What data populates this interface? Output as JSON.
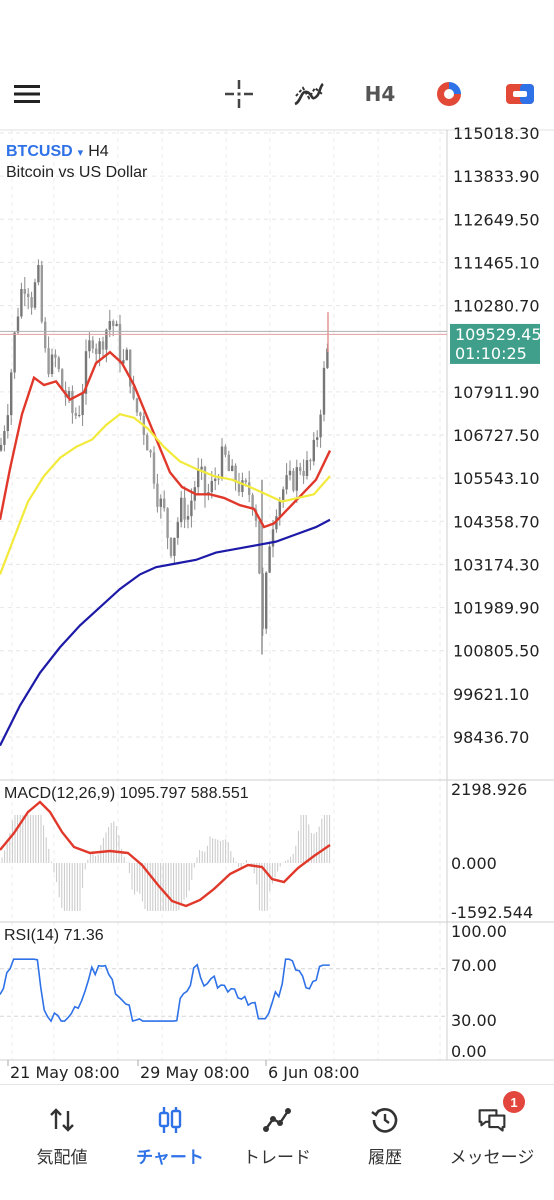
{
  "toolbar": {
    "timeframe": "H4",
    "icons": [
      "menu-icon",
      "crosshair-icon",
      "indicators-icon",
      "timeframe",
      "objects-icon",
      "trade-icon"
    ]
  },
  "symbol": {
    "name": "BTCUSD",
    "caret": "▾",
    "timeframe": "H4",
    "description": "Bitcoin vs US Dollar"
  },
  "price_axis": {
    "labels": [
      "115018.30",
      "113833.90",
      "112649.50",
      "111465.10",
      "110280.70",
      "107911.90",
      "106727.50",
      "105543.10",
      "104358.70",
      "103174.30",
      "101989.90",
      "100805.50",
      "99621.10",
      "98436.70"
    ],
    "current_price": "109529.45",
    "countdown": "01:10:25",
    "current_color": "#3f9f8b"
  },
  "macd": {
    "label": "MACD(12,26,9) 1095.797 588.551",
    "axis": [
      "2198.926",
      "0.000",
      "-1592.544"
    ]
  },
  "rsi": {
    "label": "RSI(14) 71.36",
    "axis": [
      "100.00",
      "70.00",
      "30.00",
      "0.00"
    ]
  },
  "time_axis": [
    "21 May 08:00",
    "29 May 08:00",
    "6 Jun 08:00"
  ],
  "nav": {
    "quotes": "気配値",
    "chart": "チャート",
    "trade": "トレード",
    "history": "履歴",
    "messages": "メッセージ",
    "messages_badge": "1"
  },
  "colors": {
    "accent": "#2f72e8",
    "bull": "#7a7a7a",
    "ma_fast": "#e0392b",
    "ma_mid": "#f2ea3a",
    "ma_slow": "#1d1aa8"
  }
}
